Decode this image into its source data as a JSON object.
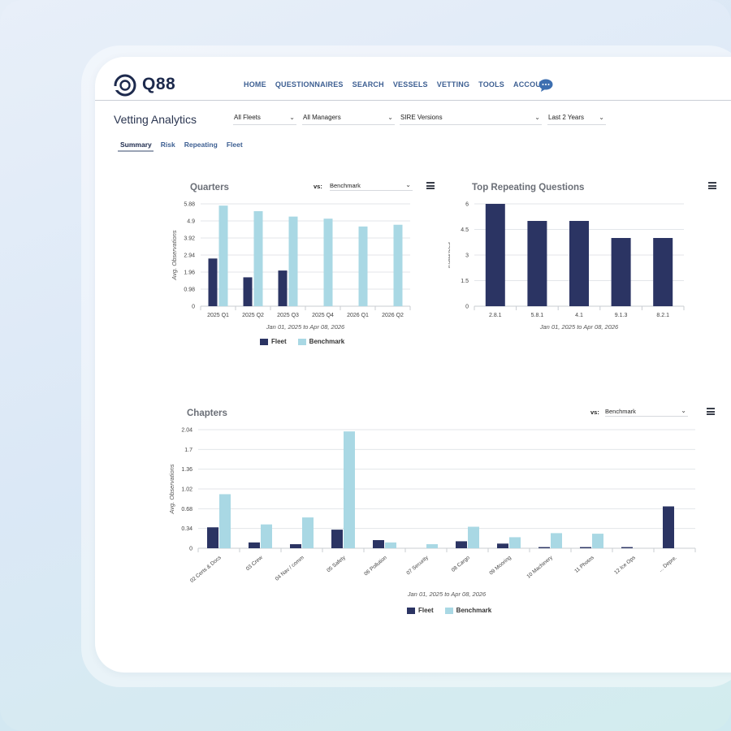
{
  "app": {
    "logo_text": "Q88",
    "page_title": "Vetting Analytics"
  },
  "nav": [
    "HOME",
    "QUESTIONNAIRES",
    "SEARCH",
    "VESSELS",
    "VETTING",
    "TOOLS",
    "ACCOUNT"
  ],
  "filters": {
    "fleets": "All Fleets",
    "managers": "All Managers",
    "sire": "SIRE Versions",
    "period": "Last 2 Years"
  },
  "subtabs": [
    "Summary",
    "Risk",
    "Repeating",
    "Fleet"
  ],
  "colors": {
    "fleet": "#2b3463",
    "benchmark": "#a9d8e4",
    "accent": "#3d5f92"
  },
  "quarters_panel": {
    "title": "Quarters",
    "vs_label": "vs:",
    "vs_value": "Benchmark"
  },
  "top_panel": {
    "title": "Top Repeating Questions"
  },
  "chapters_panel": {
    "title": "Chapters",
    "vs_label": "vs:",
    "vs_value": "Benchmark"
  },
  "legend": {
    "fleet": "Fleet",
    "benchmark": "Benchmark"
  },
  "chart_data": [
    {
      "type": "bar",
      "title": "Quarters",
      "categories": [
        "2025 Q1",
        "2025 Q2",
        "2025 Q3",
        "2025 Q4",
        "2026 Q1",
        "2026 Q2"
      ],
      "series": [
        {
          "name": "Fleet",
          "values": [
            2.74,
            1.66,
            2.05,
            null,
            null,
            null
          ]
        },
        {
          "name": "Benchmark",
          "values": [
            5.78,
            5.46,
            5.15,
            5.03,
            4.58,
            4.68
          ]
        }
      ],
      "ylabel": "Avg. Observations",
      "xlabel": "Jan 01, 2025 to Apr 08, 2026",
      "yticks": [
        "0",
        "0.98",
        "1.96",
        "2.94",
        "3.92",
        "4.9",
        "5.88"
      ],
      "ylim": [
        0,
        5.88
      ],
      "legend": "bottom",
      "grid": true
    },
    {
      "type": "bar",
      "title": "Top Repeating Questions",
      "categories": [
        "2.8.1",
        "5.8.1",
        "4.1",
        "9.1.3",
        "8.2.1"
      ],
      "series": [
        {
          "name": "",
          "values": [
            6,
            5,
            5,
            4,
            4
          ]
        }
      ],
      "ylabel": "Instances",
      "xlabel": "Jan 01, 2025 to Apr 08, 2026",
      "yticks": [
        "0",
        "1.5",
        "3",
        "4.5",
        "6"
      ],
      "ylim": [
        0,
        6
      ],
      "grid": true
    },
    {
      "type": "bar",
      "title": "Chapters",
      "categories": [
        "02 Certs & Docs",
        "03 Crew",
        "04 Nav / comm",
        "05 Safety",
        "06 Pollution",
        "07 Security",
        "08 Cargo",
        "09 Mooring",
        "10 Machinery",
        "11 Photos",
        "12 Ice Ops",
        "... Depre."
      ],
      "series": [
        {
          "name": "Fleet",
          "values": [
            0.36,
            0.1,
            0.07,
            0.32,
            0.14,
            0,
            0.12,
            0.08,
            0.02,
            0.02,
            0.02,
            0.72
          ]
        },
        {
          "name": "Benchmark",
          "values": [
            0.93,
            0.41,
            0.53,
            2.01,
            0.1,
            0.07,
            0.37,
            0.19,
            0.26,
            0.25,
            0,
            0
          ]
        }
      ],
      "ylabel": "Avg. Observations",
      "xlabel": "Jan 01, 2025 to Apr 08, 2026",
      "yticks": [
        "0",
        "0.34",
        "0.68",
        "1.02",
        "1.36",
        "1.7",
        "2.04"
      ],
      "ylim": [
        0,
        2.04
      ],
      "legend": "bottom",
      "grid": true
    }
  ]
}
